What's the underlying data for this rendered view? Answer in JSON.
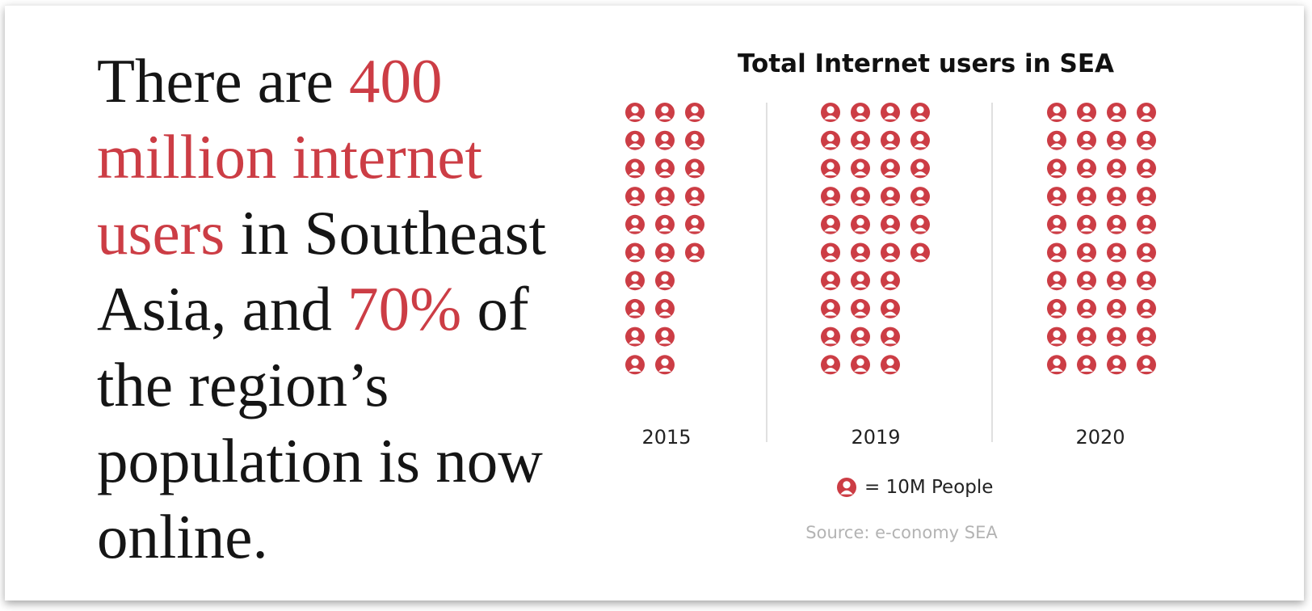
{
  "headline": {
    "t1": "There are ",
    "h1": "400 million internet users",
    "t2": " in Southeast Asia, and ",
    "h2": "70%",
    "t3": " of the region’s population is now online."
  },
  "colors": {
    "accent": "#cc3d45",
    "text": "#151515",
    "divider": "#d6d6d6"
  },
  "chart_data": {
    "type": "pictograph",
    "title": "Total Internet users in SEA",
    "icon": "person-icon",
    "unit_per_icon": 10000000,
    "categories": [
      "2015",
      "2019",
      "2020"
    ],
    "values": [
      260000000,
      360000000,
      400000000
    ],
    "icon_counts": [
      26,
      36,
      40
    ],
    "legend": {
      "label": "= 10M People"
    },
    "source": "Source: e-conomy SEA"
  }
}
